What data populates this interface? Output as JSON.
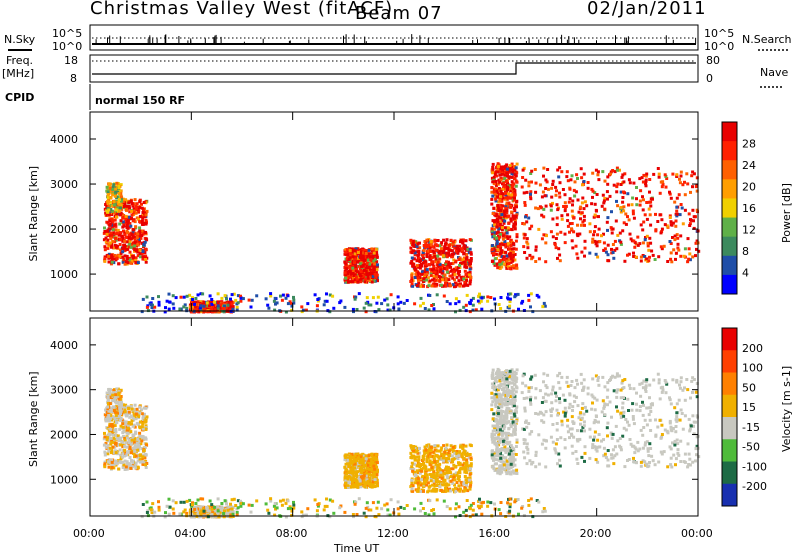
{
  "header": {
    "station": "Christmas Valley West (fitACF)",
    "beam": "Beam 07",
    "date": "02/Jan/2011"
  },
  "sidebar": {
    "nsky": "N.Sky",
    "freq": "Freq.",
    "freq_unit": "[MHz]",
    "cpid": "CPID",
    "nsearch": "N.Search",
    "nave": "Nave"
  },
  "strip": {
    "noise_ticks": [
      "10^5",
      "10^0"
    ],
    "freq_ticks": [
      "18",
      "8"
    ],
    "nave_ticks": [
      "80",
      "0"
    ],
    "cpid_text": "normal 150 RF"
  },
  "colors": {
    "power": [
      "#0000ff",
      "#1f4ea8",
      "#3c8a5e",
      "#5fb048",
      "#f0d000",
      "#ff9e00",
      "#ff6000",
      "#ff2000",
      "#e80000"
    ],
    "velocity": [
      "#1830b0",
      "#1d6b45",
      "#4fbb3a",
      "#c8c8c0",
      "#f0b000",
      "#ff8000",
      "#ff4000",
      "#e80000"
    ]
  },
  "chart_data": [
    {
      "type": "heatmap",
      "name_key": "power",
      "xlabel": "",
      "ylabel": "Slant Range [km]",
      "colorbar_label": "Power [dB]",
      "colorbar_ticks": [
        "28",
        "24",
        "20",
        "16",
        "12",
        "8",
        "4"
      ],
      "x_ticks": [
        "00:00",
        "04:00",
        "08:00",
        "12:00",
        "16:00",
        "20:00",
        "00:00"
      ],
      "y_ticks": [
        "4000",
        "3000",
        "2000",
        "1000"
      ],
      "xlim_hours": [
        0,
        24
      ],
      "ylim_km": [
        180,
        4600
      ],
      "regions": [
        {
          "t0": 0.5,
          "t1": 2.2,
          "r0": 1250,
          "r1": 2700,
          "level": "high"
        },
        {
          "t0": 0.6,
          "t1": 1.2,
          "r0": 2400,
          "r1": 3050,
          "level": "mid"
        },
        {
          "t0": 3.9,
          "t1": 5.6,
          "r0": 190,
          "r1": 420,
          "level": "high"
        },
        {
          "t0": 10.0,
          "t1": 11.3,
          "r0": 850,
          "r1": 1600,
          "level": "high"
        },
        {
          "t0": 12.6,
          "t1": 15.0,
          "r0": 750,
          "r1": 1800,
          "level": "high"
        },
        {
          "t0": 15.8,
          "t1": 16.8,
          "r0": 1150,
          "r1": 3500,
          "level": "high"
        },
        {
          "t0": 17.0,
          "t1": 24.0,
          "r0": 1300,
          "r1": 3400,
          "level": "high"
        },
        {
          "t0": 2.0,
          "t1": 18.0,
          "r0": 190,
          "r1": 600,
          "level": "low"
        }
      ]
    },
    {
      "type": "heatmap",
      "name_key": "velocity",
      "xlabel": "Time UT",
      "ylabel": "Slant Range [km]",
      "colorbar_label": "Velocity [m s-1]",
      "colorbar_ticks": [
        "200",
        "100",
        "50",
        "15",
        "-15",
        "-50",
        "-100",
        "-200"
      ],
      "x_ticks": [
        "00:00",
        "04:00",
        "08:00",
        "12:00",
        "16:00",
        "20:00",
        "00:00"
      ],
      "y_ticks": [
        "4000",
        "3000",
        "2000",
        "1000"
      ],
      "xlim_hours": [
        0,
        24
      ],
      "ylim_km": [
        180,
        4600
      ]
    }
  ]
}
